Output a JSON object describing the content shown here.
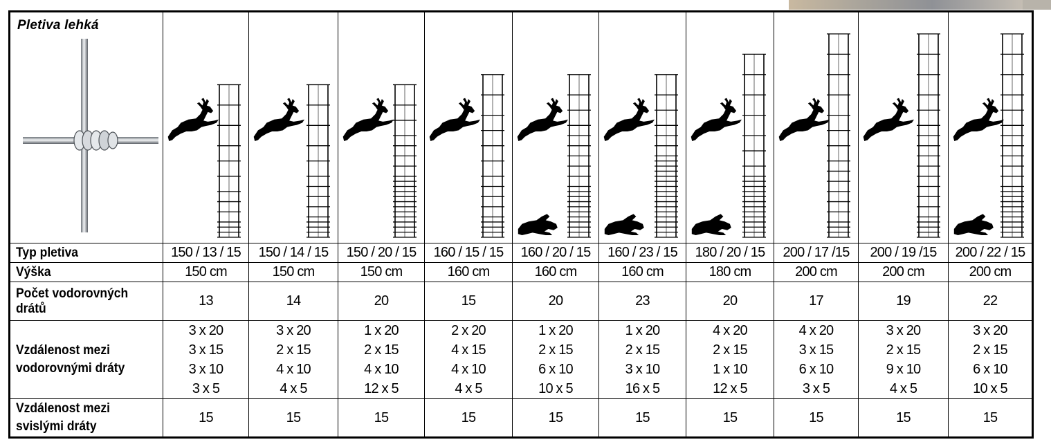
{
  "title": "Pletiva lehká",
  "row_labels": {
    "type": "Typ pletiva",
    "height": "Výška",
    "count": "Počet vodorovných drátů",
    "h_spacing": "Vzdálenost mezi vodorovnými dráty",
    "v_spacing": "Vzdálenost mezi svislými dráty"
  },
  "products": [
    {
      "type": "150 / 13 / 15",
      "height": "150 cm",
      "count": "13",
      "spacing": [
        "3 x 20",
        "3 x 15",
        "3 x 10",
        "3 x 5"
      ],
      "vertical": "15",
      "rabbit": false
    },
    {
      "type": "150 / 14 / 15",
      "height": "150 cm",
      "count": "14",
      "spacing": [
        "3 x 20",
        "2 x 15",
        "4 x 10",
        "4 x 5"
      ],
      "vertical": "15",
      "rabbit": false
    },
    {
      "type": "150 / 20 / 15",
      "height": "150 cm",
      "count": "20",
      "spacing": [
        "1 x 20",
        "2 x 15",
        "4 x 10",
        "12 x 5"
      ],
      "vertical": "15",
      "rabbit": false
    },
    {
      "type": "160 / 15 / 15",
      "height": "160 cm",
      "count": "15",
      "spacing": [
        "2 x 20",
        "4 x 15",
        "4 x 10",
        "4 x 5"
      ],
      "vertical": "15",
      "rabbit": false
    },
    {
      "type": "160 / 20 / 15",
      "height": "160 cm",
      "count": "20",
      "spacing": [
        "1 x 20",
        "2 x 15",
        "6 x 10",
        "10 x 5"
      ],
      "vertical": "15",
      "rabbit": true
    },
    {
      "type": "160 / 23 / 15",
      "height": "160 cm",
      "count": "23",
      "spacing": [
        "1 x 20",
        "2 x 15",
        "3 x 10",
        "16 x 5"
      ],
      "vertical": "15",
      "rabbit": true
    },
    {
      "type": "180 / 20 / 15",
      "height": "180 cm",
      "count": "20",
      "spacing": [
        "4 x 20",
        "2 x 15",
        "1 x 10",
        "12 x 5"
      ],
      "vertical": "15",
      "rabbit": true
    },
    {
      "type": "200 / 17 /15",
      "height": "200 cm",
      "count": "17",
      "spacing": [
        "4 x 20",
        "3 x 15",
        "6 x 10",
        "3 x 5"
      ],
      "vertical": "15",
      "rabbit": false
    },
    {
      "type": "200 / 19 /15",
      "height": "200 cm",
      "count": "19",
      "spacing": [
        "3 x 20",
        "2 x 15",
        "9 x 10",
        "4 x 5"
      ],
      "vertical": "15",
      "rabbit": false
    },
    {
      "type": "200 / 22 / 15",
      "height": "200 cm",
      "count": "22",
      "spacing": [
        "3 x 20",
        "2 x 15",
        "6 x 10",
        "10 x 5"
      ],
      "vertical": "15",
      "rabbit": true
    }
  ],
  "icons": {
    "hero": "barbed-wire-knot-icon",
    "deer": "deer-silhouette-icon",
    "rabbit": "rabbit-silhouette-icon"
  },
  "colors": {
    "border": "#000000",
    "wire": "#9aa0a6",
    "background": "#ffffff"
  }
}
